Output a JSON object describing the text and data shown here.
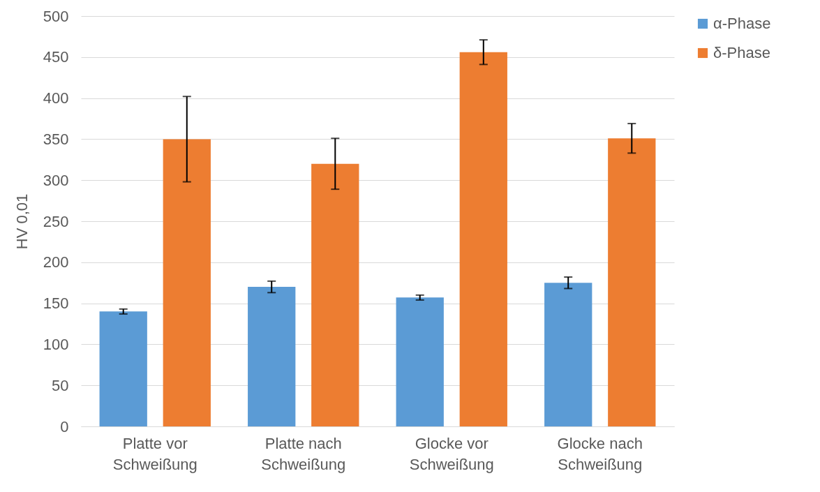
{
  "chart_data": {
    "type": "bar",
    "ylabel": "HV 0,01",
    "categories": [
      "Platte vor Schweißung",
      "Platte nach Schweißung",
      "Glocke vor Schweißung",
      "Glocke nach Schweißung"
    ],
    "series": [
      {
        "name": "α-Phase",
        "color": "#5b9bd5",
        "values": [
          140,
          170,
          157,
          175
        ],
        "errors": [
          3,
          7,
          3,
          7
        ]
      },
      {
        "name": "δ-Phase",
        "color": "#ed7d31",
        "values": [
          350,
          320,
          456,
          351
        ],
        "errors": [
          52,
          31,
          15,
          18
        ]
      }
    ],
    "ylim": [
      0,
      500
    ],
    "yticks": [
      0,
      50,
      100,
      150,
      200,
      250,
      300,
      350,
      400,
      450,
      500
    ],
    "grid": "y",
    "legend": "right"
  }
}
